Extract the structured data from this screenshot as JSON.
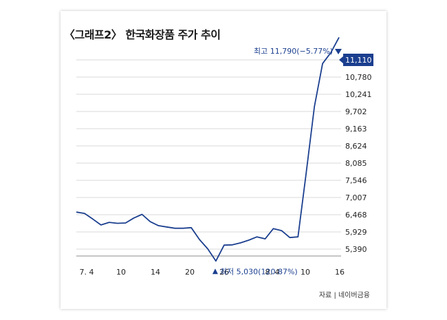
{
  "chart_data": {
    "type": "line",
    "title": "〈그래프2〉 한국화장품 주가 추이",
    "source": "자료 | 네이버금융",
    "x_tick_labels": [
      "7. 4",
      "10",
      "14",
      "20",
      "26",
      "8. 4",
      "10",
      "16"
    ],
    "y_tick_labels": [
      "11,110",
      "10,780",
      "10,241",
      "9,702",
      "9,163",
      "8,624",
      "8,085",
      "7,546",
      "7,007",
      "6,468",
      "5,929",
      "5,390"
    ],
    "ylim": [
      5030,
      11790
    ],
    "highlight_tick": "11,110",
    "series": [
      {
        "values": [
          6510,
          6470,
          6300,
          6120,
          6200,
          6170,
          6180,
          6330,
          6440,
          6220,
          6100,
          6060,
          6020,
          6020,
          6040,
          5680,
          5400,
          5030,
          5510,
          5520,
          5580,
          5660,
          5760,
          5700,
          6010,
          5950,
          5740,
          5760,
          7700,
          9700,
          11000,
          11330,
          11790
        ]
      }
    ],
    "annotations": {
      "high": "최고 11,790(−5.77%)",
      "low": "최저 5,030(120.87%)"
    },
    "colors": {
      "line": "#1b3f8f",
      "grid": "#d9d9d9",
      "axis": "#8c8c8c",
      "highlight_bg": "#1b3f8f",
      "annotation_text": "#1b3f8f"
    },
    "grid": true
  }
}
